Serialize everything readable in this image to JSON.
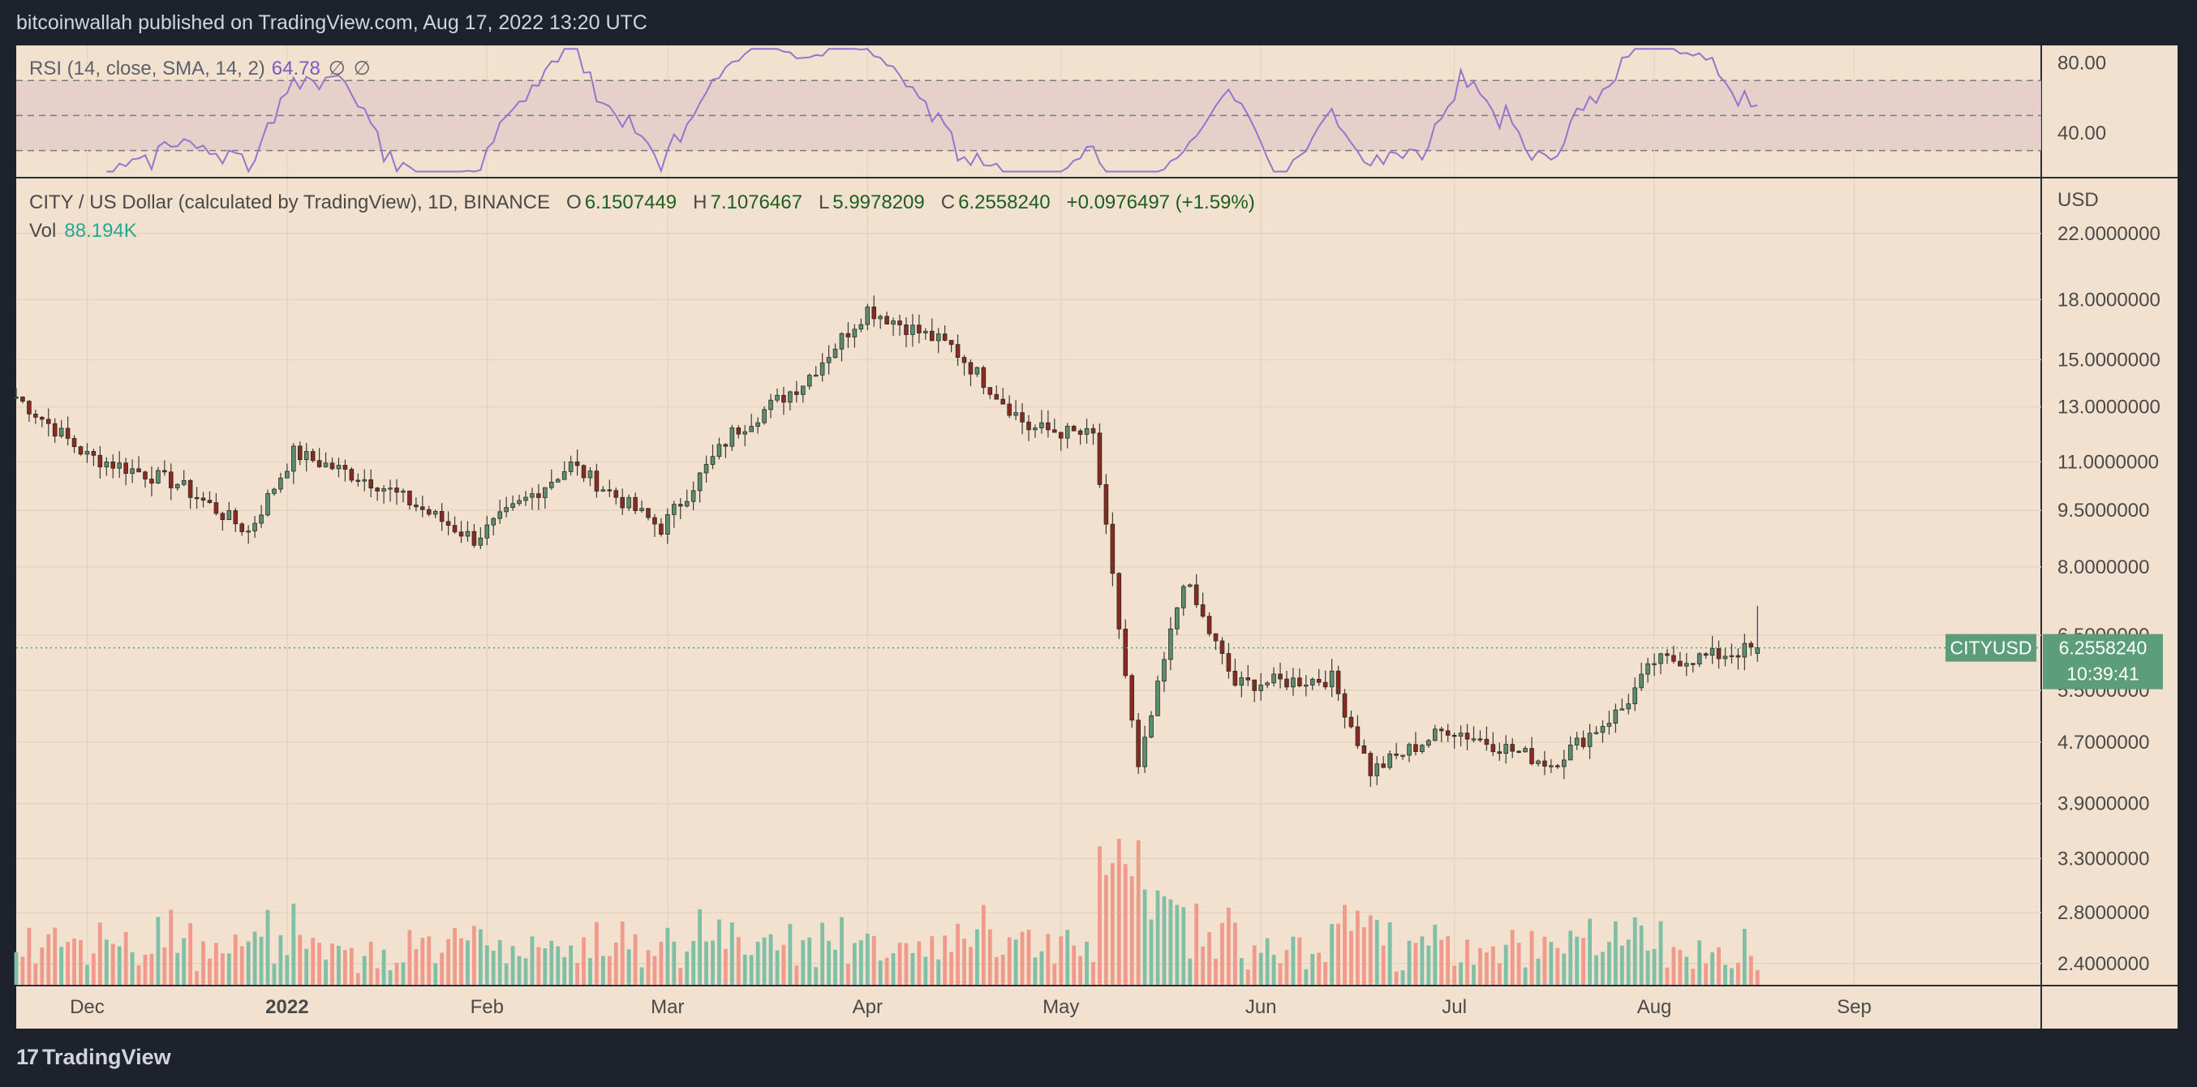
{
  "header": {
    "published_text": "bitcoinwallah published on TradingView.com, Aug 17, 2022 13:20 UTC"
  },
  "rsi_panel": {
    "label": "RSI (14, close, SMA, 14, 2)",
    "value": "64.78",
    "na_symbol_1": "∅",
    "na_symbol_2": "∅",
    "axis_ticks": [
      "80.00",
      "40.00"
    ]
  },
  "main_panel": {
    "symbol": "CITY / US Dollar (calculated by TradingView), 1D, BINANCE",
    "ohlc": {
      "o_label": "O",
      "o": "6.1507449",
      "h_label": "H",
      "h": "7.1076467",
      "l_label": "L",
      "l": "5.9978209",
      "c_label": "C",
      "c": "6.2558240",
      "change": "+0.0976497 (+1.59%)"
    },
    "vol_label": "Vol",
    "vol_value": "88.194K",
    "currency": "USD",
    "price_ticks": [
      "22.0000000",
      "18.0000000",
      "15.0000000",
      "13.0000000",
      "11.0000000",
      "9.5000000",
      "8.0000000",
      "6.5000000",
      "5.5000000",
      "4.7000000",
      "3.9000000",
      "3.3000000",
      "2.8000000",
      "2.4000000"
    ],
    "last_price": {
      "symbol_tag": "CITYUSD",
      "price": "6.2558240",
      "countdown": "10:39:41"
    },
    "time_ticks": [
      "Dec",
      "2022",
      "Feb",
      "Mar",
      "Apr",
      "May",
      "Jun",
      "Jul",
      "Aug",
      "Sep"
    ]
  },
  "footer": {
    "brand": "TradingView",
    "brand_mark": "17"
  },
  "colors": {
    "up": "#5a8f6e",
    "down": "#8b2a1e",
    "vol_up": "#7fbfa6",
    "vol_down": "#ef9a8a",
    "rsi_line": "#9575cd",
    "rsi_band": "#e3ccc8",
    "background": "#f2e1ce",
    "tag_bg": "#5c9e7c"
  },
  "chart_data": {
    "type": "candlestick",
    "symbol": "CITY / US Dollar (calculated by TradingView), 1D, BINANCE",
    "y_scale": "log",
    "ylim": [
      2.25,
      26
    ],
    "x_range": [
      "2021-11-20",
      "2022-09-30"
    ],
    "key_points": [
      {
        "date": "2021-11-20",
        "close": 13.4
      },
      {
        "date": "2021-12-01",
        "close": 11.2
      },
      {
        "date": "2021-12-15",
        "close": 10.3
      },
      {
        "date": "2021-12-26",
        "close": 8.9
      },
      {
        "date": "2022-01-02",
        "close": 11.3
      },
      {
        "date": "2022-01-15",
        "close": 10.3
      },
      {
        "date": "2022-01-30",
        "close": 8.7
      },
      {
        "date": "2022-02-14",
        "close": 10.9
      },
      {
        "date": "2022-02-28",
        "close": 9.0
      },
      {
        "date": "2022-03-11",
        "close": 12.0
      },
      {
        "date": "2022-03-22",
        "close": 14.0
      },
      {
        "date": "2022-04-01",
        "close": 17.5
      },
      {
        "date": "2022-04-14",
        "close": 15.6
      },
      {
        "date": "2022-04-26",
        "close": 12.2
      },
      {
        "date": "2022-05-06",
        "close": 11.9
      },
      {
        "date": "2022-05-13",
        "close": 4.3
      },
      {
        "date": "2022-05-20",
        "close": 7.7
      },
      {
        "date": "2022-05-28",
        "close": 5.6
      },
      {
        "date": "2022-06-12",
        "close": 5.7
      },
      {
        "date": "2022-06-18",
        "close": 4.3
      },
      {
        "date": "2022-06-30",
        "close": 4.9
      },
      {
        "date": "2022-07-16",
        "close": 4.4
      },
      {
        "date": "2022-07-27",
        "close": 5.2
      },
      {
        "date": "2022-08-01",
        "close": 6.0
      },
      {
        "date": "2022-08-10",
        "close": 6.1
      },
      {
        "date": "2022-08-17",
        "close": 6.255824
      }
    ],
    "last": {
      "open": 6.1507449,
      "high": 7.1076467,
      "low": 5.9978209,
      "close": 6.255824,
      "change": "+0.0976497 (+1.59%)",
      "volume": "88.194K"
    },
    "rsi": {
      "period": 14,
      "last": 64.78,
      "bands": [
        70,
        50,
        30
      ],
      "ylim": [
        15,
        90
      ]
    }
  }
}
